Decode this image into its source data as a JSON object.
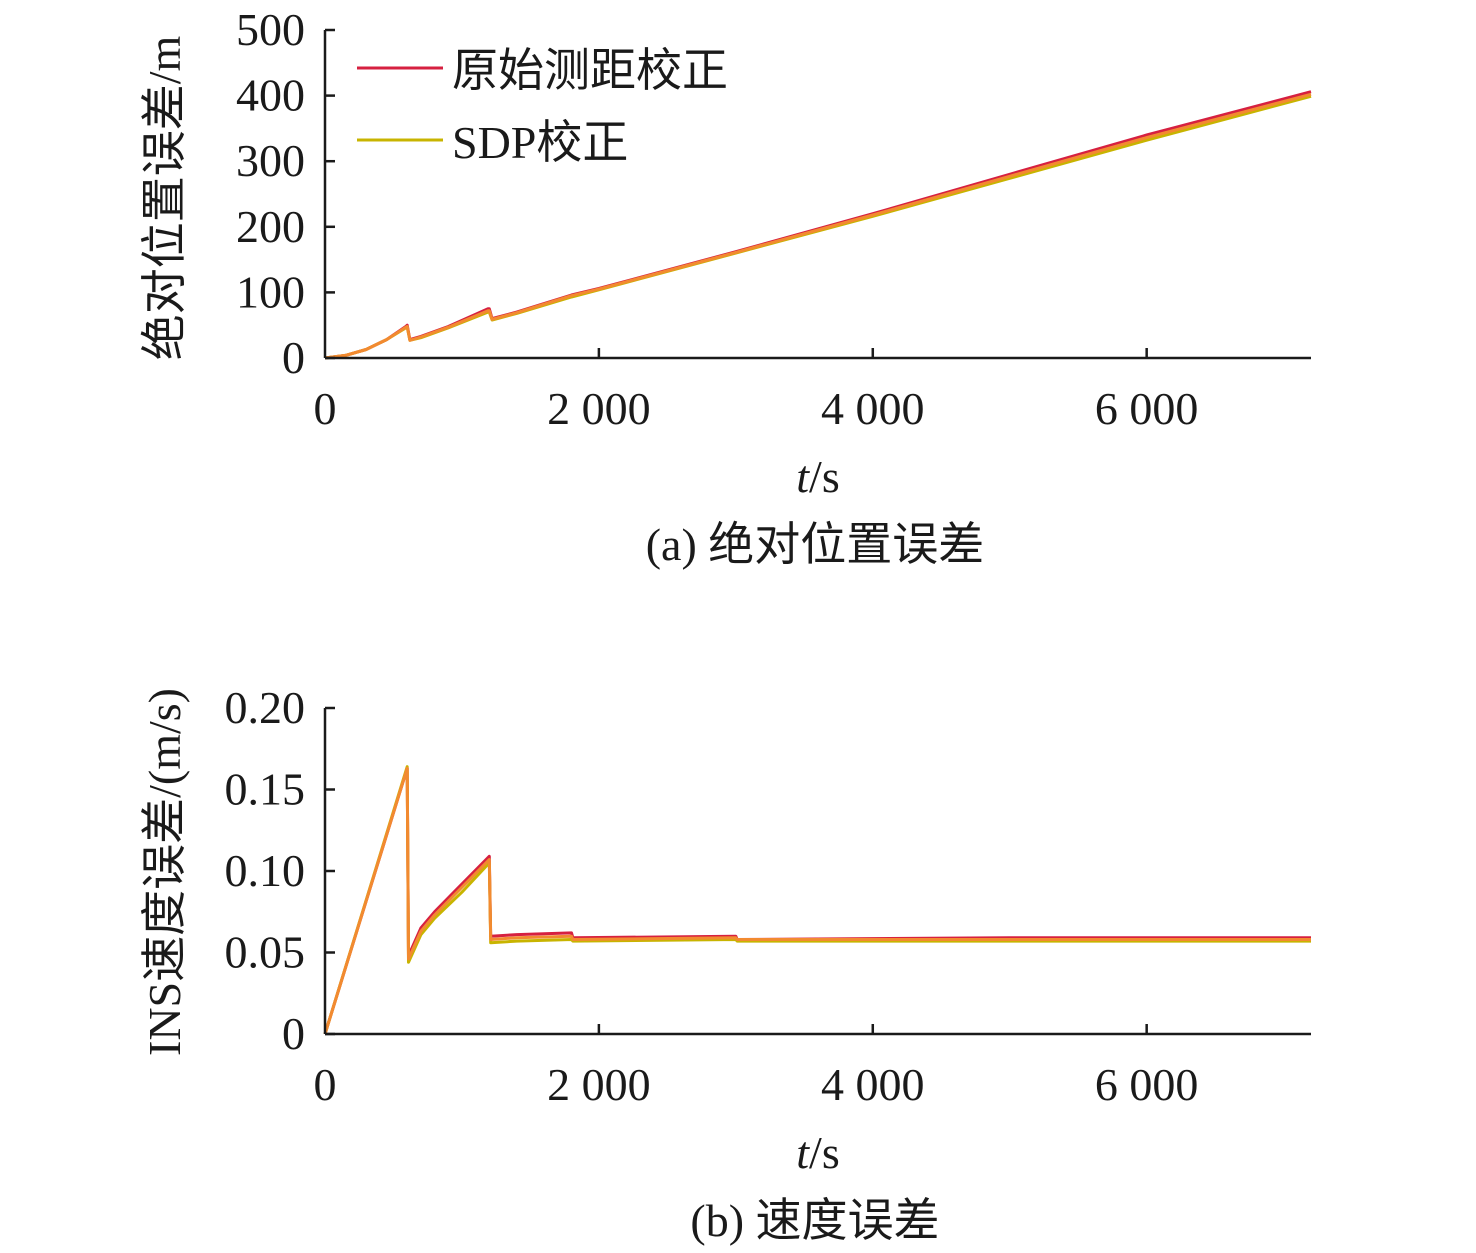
{
  "chart_data": [
    {
      "type": "line",
      "caption": "(a) 绝对位置误差",
      "xlabel_italic": "t",
      "xlabel_unit": "/s",
      "ylabel": "绝对位置误差/m",
      "xlim": [
        0,
        7200
      ],
      "ylim": [
        0,
        500
      ],
      "xticks": [
        0,
        2000,
        4000,
        6000
      ],
      "xtick_labels": [
        "0",
        "2 000",
        "4 000",
        "6 000"
      ],
      "yticks": [
        0,
        100,
        200,
        300,
        400,
        500
      ],
      "ytick_labels": [
        "0",
        "100",
        "200",
        "300",
        "400",
        "500"
      ],
      "legend_position": "top-left",
      "series": [
        {
          "name": "原始测距校正",
          "color": "#d62040",
          "x": [
            0,
            150,
            300,
            450,
            590,
            600,
            620,
            700,
            900,
            1190,
            1200,
            1220,
            1400,
            1800,
            2000,
            3000,
            4000,
            5000,
            6000,
            7200
          ],
          "y": [
            0,
            4,
            13,
            28,
            48,
            50,
            28,
            33,
            48,
            75,
            75,
            60,
            70,
            96,
            106,
            162,
            220,
            280,
            340,
            406
          ]
        },
        {
          "name": "SDP校正",
          "color": "#c8b400",
          "x": [
            0,
            150,
            300,
            450,
            590,
            600,
            620,
            700,
            900,
            1190,
            1200,
            1220,
            1400,
            1800,
            2000,
            3000,
            4000,
            5000,
            6000,
            7200
          ],
          "y": [
            0,
            4,
            13,
            28,
            46,
            47,
            27,
            31,
            46,
            70,
            70,
            58,
            68,
            93,
            104,
            160,
            216,
            274,
            332,
            399
          ]
        },
        {
          "color": "#f28a30",
          "x": [
            0,
            150,
            300,
            450,
            590,
            600,
            620,
            700,
            900,
            1190,
            1200,
            1220,
            1400,
            1800,
            2000,
            3000,
            4000,
            5000,
            6000,
            7200
          ],
          "y": [
            0,
            4,
            13,
            28,
            47,
            48,
            27,
            32,
            47,
            72,
            72,
            59,
            69,
            95,
            105,
            161,
            218,
            277,
            336,
            402
          ]
        }
      ]
    },
    {
      "type": "line",
      "caption": "(b) 速度误差",
      "xlabel_italic": "t",
      "xlabel_unit": "/s",
      "ylabel": "INS速度误差/(m/s)",
      "xlim": [
        0,
        7200
      ],
      "ylim": [
        0,
        0.2
      ],
      "xticks": [
        0,
        2000,
        4000,
        6000
      ],
      "xtick_labels": [
        "0",
        "2 000",
        "4 000",
        "6 000"
      ],
      "yticks": [
        0,
        0.05,
        0.1,
        0.15,
        0.2
      ],
      "ytick_labels": [
        "0",
        "0.05",
        "0.10",
        "0.15",
        "0.20"
      ],
      "series": [
        {
          "name": "原始测距校正",
          "color": "#d62040",
          "x": [
            0,
            600,
            610,
            700,
            800,
            1000,
            1200,
            1210,
            1400,
            1800,
            1810,
            3000,
            3010,
            5000,
            7200
          ],
          "y": [
            0,
            0.163,
            0.048,
            0.065,
            0.075,
            0.092,
            0.109,
            0.06,
            0.061,
            0.062,
            0.059,
            0.06,
            0.058,
            0.059,
            0.059
          ]
        },
        {
          "name": "SDP校正",
          "color": "#c8b400",
          "x": [
            0,
            600,
            610,
            700,
            800,
            1000,
            1200,
            1210,
            1400,
            1800,
            1810,
            3000,
            3010,
            5000,
            7200
          ],
          "y": [
            0,
            0.164,
            0.044,
            0.061,
            0.071,
            0.087,
            0.105,
            0.056,
            0.057,
            0.058,
            0.057,
            0.058,
            0.057,
            0.057,
            0.057
          ]
        },
        {
          "color": "#f28a30",
          "x": [
            0,
            600,
            610,
            700,
            800,
            1000,
            1200,
            1210,
            1400,
            1800,
            1810,
            3000,
            3010,
            5000,
            7200
          ],
          "y": [
            0,
            0.163,
            0.046,
            0.063,
            0.073,
            0.09,
            0.107,
            0.058,
            0.059,
            0.06,
            0.058,
            0.059,
            0.058,
            0.058,
            0.058
          ]
        }
      ]
    }
  ]
}
